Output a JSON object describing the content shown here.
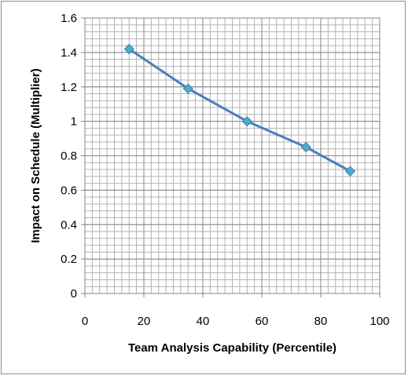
{
  "chart_data": {
    "type": "line",
    "title": "",
    "xlabel": "Team Analysis Capability (Percentile)",
    "ylabel": "Impact on Schedule (Multiplier)",
    "xlim": [
      0,
      100
    ],
    "ylim": [
      0,
      1.6
    ],
    "x_ticks": [
      "0",
      "20",
      "40",
      "60",
      "80",
      "100"
    ],
    "y_ticks": [
      "0",
      "0.2",
      "0.4",
      "0.6",
      "0.8",
      "1",
      "1.2",
      "1.4",
      "1.6"
    ],
    "grid": true,
    "legend": "none",
    "series": [
      {
        "x": [
          15,
          35,
          55,
          75,
          90
        ],
        "y": [
          1.42,
          1.19,
          1.0,
          0.85,
          0.71
        ],
        "color": "#4a7ebb",
        "marker": "diamond",
        "marker_color": "#4bacc6"
      }
    ]
  }
}
